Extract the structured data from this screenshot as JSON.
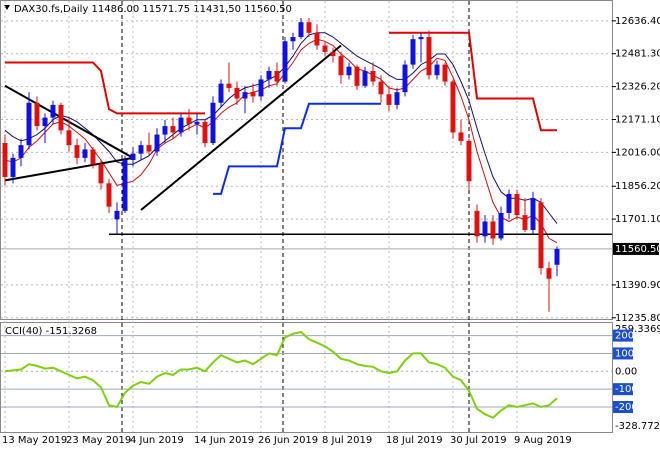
{
  "chart_data": [
    {
      "type": "candlestick",
      "title": "DAX30.fs,Daily  11486.00 11571.75 11431,50 11560.50",
      "categories": [
        "13 May 2019",
        null,
        null,
        null,
        null,
        null,
        null,
        null,
        "23 May 2019",
        null,
        null,
        null,
        null,
        null,
        null,
        null,
        "4 Jun 2019",
        null,
        null,
        null,
        null,
        null,
        null,
        null,
        "14 Jun 2019",
        null,
        null,
        null,
        null,
        null,
        null,
        null,
        "26 Jun 2019",
        null,
        null,
        null,
        null,
        null,
        null,
        null,
        "8 Jul 2019",
        null,
        null,
        null,
        null,
        null,
        null,
        null,
        "18 Jul 2019",
        null,
        null,
        null,
        null,
        null,
        null,
        null,
        "30 Jul 2019",
        null,
        null,
        null,
        null,
        null,
        null,
        null,
        "9 Aug 2019",
        null,
        null,
        null,
        null,
        null
      ],
      "open": [
        12060,
        11900,
        11990,
        12050,
        12250,
        12140,
        12180,
        12240,
        12120,
        12050,
        11990,
        12030,
        11960,
        11870,
        11700,
        11740,
        11980,
        12010,
        12050,
        12020,
        12100,
        12140,
        12110,
        12180,
        12150,
        12160,
        12060,
        12250,
        12340,
        12320,
        12270,
        12300,
        12280,
        12360,
        12400,
        12350,
        12540,
        12560,
        12630,
        12580,
        12520,
        12490,
        12470,
        12380,
        12420,
        12330,
        12400,
        12350,
        12290,
        12240,
        12300,
        12430,
        12550,
        12560,
        12380,
        12430,
        12350,
        12110,
        12070,
        11740,
        11620,
        11690,
        11610,
        11730,
        11820,
        11720,
        11650,
        11780,
        11470,
        11486
      ],
      "high": [
        12100,
        12010,
        12080,
        12300,
        12280,
        12200,
        12260,
        12250,
        12180,
        12080,
        12060,
        12040,
        11980,
        11890,
        11780,
        12000,
        12040,
        12070,
        12110,
        12130,
        12170,
        12180,
        12200,
        12220,
        12200,
        12170,
        12280,
        12360,
        12440,
        12350,
        12330,
        12340,
        12380,
        12420,
        12440,
        12560,
        12580,
        12650,
        12650,
        12620,
        12540,
        12510,
        12490,
        12440,
        12430,
        12420,
        12440,
        12380,
        12330,
        12320,
        12450,
        12570,
        12580,
        12590,
        12450,
        12440,
        12360,
        12170,
        12080,
        11770,
        11720,
        11720,
        11760,
        11840,
        11840,
        11800,
        11830,
        11800,
        11500,
        11571.75
      ],
      "low": [
        11860,
        11870,
        11950,
        12030,
        12120,
        12060,
        12150,
        12100,
        12020,
        11960,
        11970,
        11940,
        11840,
        11730,
        11630,
        11730,
        11950,
        11980,
        12000,
        12000,
        12060,
        12080,
        12090,
        12120,
        12100,
        12040,
        12050,
        12230,
        12300,
        12240,
        12200,
        12250,
        12260,
        12320,
        12330,
        12340,
        12500,
        12550,
        12560,
        12500,
        12470,
        12440,
        12340,
        12360,
        12310,
        12320,
        12330,
        12250,
        12210,
        12220,
        12280,
        12410,
        12440,
        12360,
        12360,
        12330,
        12080,
        12050,
        11840,
        11590,
        11590,
        11580,
        11600,
        11700,
        11700,
        11640,
        11630,
        11440,
        11264,
        11431.5
      ],
      "close": [
        11900,
        11990,
        12050,
        12250,
        12140,
        12180,
        12240,
        12120,
        12050,
        11990,
        12030,
        11960,
        11870,
        11760,
        11740,
        11980,
        12010,
        12050,
        12020,
        12100,
        12140,
        12110,
        12180,
        12150,
        12160,
        12060,
        12250,
        12340,
        12320,
        12270,
        12300,
        12280,
        12360,
        12400,
        12350,
        12540,
        12560,
        12630,
        12580,
        12520,
        12490,
        12470,
        12380,
        12420,
        12330,
        12400,
        12350,
        12290,
        12240,
        12300,
        12430,
        12550,
        12560,
        12380,
        12430,
        12350,
        12110,
        12070,
        11880,
        11620,
        11690,
        11610,
        11730,
        11820,
        11720,
        11650,
        11800,
        11470,
        11420,
        11560.5
      ],
      "up_color": "#1010e0",
      "down_color": "#e01010",
      "moving_averages": [
        {
          "color": "#cc1010",
          "values": [
            11980,
            11970,
            11990,
            12040,
            12070,
            12110,
            12150,
            12160,
            12140,
            12110,
            12080,
            12030,
            11980,
            11920,
            11860,
            11870,
            11880,
            11910,
            11960,
            12030,
            12060,
            12080,
            12110,
            12130,
            12150,
            12130,
            12160,
            12200,
            12230,
            12250,
            12290,
            12300,
            12310,
            12330,
            12340,
            12390,
            12440,
            12500,
            12530,
            12550,
            12540,
            12520,
            12480,
            12450,
            12410,
            12400,
            12380,
            12360,
            12320,
            12310,
            12320,
            12360,
            12400,
            12420,
            12460,
            12450,
            12370,
            12280,
            12170,
            12020,
            11900,
            11780,
            11710,
            11690,
            11710,
            11700,
            11720,
            11680,
            11610,
            11590
          ]
        },
        {
          "color": "#101070",
          "values": [
            12120,
            12090,
            12070,
            12080,
            12100,
            12130,
            12170,
            12190,
            12180,
            12160,
            12130,
            12100,
            12060,
            12020,
            11970,
            11960,
            11960,
            11980,
            12000,
            12040,
            12070,
            12100,
            12130,
            12150,
            12170,
            12170,
            12190,
            12230,
            12270,
            12300,
            12320,
            12330,
            12340,
            12360,
            12380,
            12420,
            12470,
            12530,
            12570,
            12580,
            12580,
            12560,
            12530,
            12500,
            12470,
            12450,
            12430,
            12410,
            12380,
            12360,
            12360,
            12390,
            12430,
            12450,
            12480,
            12480,
            12430,
            12350,
            12260,
            12130,
            12010,
            11900,
            11830,
            11800,
            11800,
            11790,
            11800,
            11780,
            11730,
            11680
          ]
        }
      ],
      "channels": [
        {
          "color": "#e00000",
          "values": [
            12440,
            12440,
            12440,
            12440,
            12440,
            12440,
            12440,
            12440,
            12440,
            12440,
            12440,
            12440,
            12400,
            12220,
            12200,
            12200,
            12200,
            12200,
            12200,
            12200,
            12200,
            12200,
            12200,
            12200,
            12200,
            12200,
            null,
            null,
            null,
            null,
            null,
            null,
            null,
            null,
            null,
            null,
            null,
            null,
            null,
            null,
            null,
            null,
            null,
            null,
            null,
            null,
            null,
            null,
            12580,
            12580,
            12580,
            12580,
            12580,
            12580,
            12580,
            12580,
            12580,
            12580,
            12580,
            12270,
            12270,
            12270,
            12270,
            12270,
            12270,
            12270,
            12270,
            12120,
            12120,
            12120
          ]
        },
        {
          "color": "#0a2cf0",
          "values": [
            null,
            null,
            null,
            null,
            null,
            null,
            null,
            null,
            null,
            null,
            null,
            null,
            null,
            null,
            null,
            null,
            null,
            null,
            null,
            null,
            null,
            null,
            null,
            null,
            null,
            null,
            11820,
            11820,
            11950,
            11950,
            11950,
            11950,
            11950,
            11950,
            11950,
            12130,
            12130,
            12130,
            12245,
            12245,
            12245,
            12245,
            12245,
            12245,
            12245,
            12245,
            12245,
            12245,
            null,
            null,
            null,
            null,
            null,
            null,
            null,
            null,
            null,
            null,
            null,
            null,
            null,
            null,
            null,
            null,
            null,
            null,
            null,
            null,
            null,
            null
          ]
        }
      ],
      "trendlines": [
        {
          "x": [
            0,
            16
          ],
          "y": [
            12330,
            11990
          ]
        },
        {
          "x": [
            0,
            16
          ],
          "y": [
            11884,
            11990
          ]
        },
        {
          "x": [
            17,
            42
          ],
          "y": [
            11744,
            12520
          ]
        }
      ],
      "hline": {
        "from": 13,
        "value": 11630
      },
      "ylim": [
        11230,
        12730
      ],
      "yticks": [
        {
          "value": 12636.4,
          "label": "12636.40"
        },
        {
          "value": 12481.3,
          "label": "12481.30"
        },
        {
          "value": 12326.2,
          "label": "12326.20"
        },
        {
          "value": 12171.1,
          "label": "12171.10"
        },
        {
          "value": 12016,
          "label": "12016.00"
        },
        {
          "value": 11856.2,
          "label": "11856.20"
        },
        {
          "value": 11701.1,
          "label": "11701.10"
        },
        {
          "value": 11390.9,
          "label": "11390.90"
        },
        {
          "value": 11235.8,
          "label": "11235.80"
        }
      ],
      "last_price": {
        "value": 11560.5,
        "label": "11560.50"
      },
      "grid": true
    },
    {
      "type": "line",
      "title": "CCI(40) -151.3268",
      "color": "#80d010",
      "values": [
        0,
        5,
        10,
        40,
        30,
        15,
        20,
        0,
        -20,
        -40,
        -30,
        -50,
        -90,
        -190,
        -200,
        -120,
        -80,
        -60,
        -70,
        -30,
        -10,
        -20,
        10,
        10,
        20,
        0,
        50,
        90,
        70,
        50,
        60,
        40,
        70,
        100,
        90,
        190,
        210,
        220,
        180,
        160,
        140,
        110,
        70,
        60,
        40,
        30,
        25,
        0,
        -10,
        0,
        60,
        100,
        100,
        50,
        40,
        20,
        -30,
        -50,
        -110,
        -210,
        -240,
        -260,
        -220,
        -190,
        -200,
        -190,
        -180,
        -200,
        -190,
        -151.3268
      ],
      "ylim": [
        -328.7722,
        259.3369
      ],
      "yticks": [
        200,
        100,
        {
          "value": 0,
          "label": "0.00"
        },
        -100,
        -200
      ],
      "grid": true
    }
  ]
}
